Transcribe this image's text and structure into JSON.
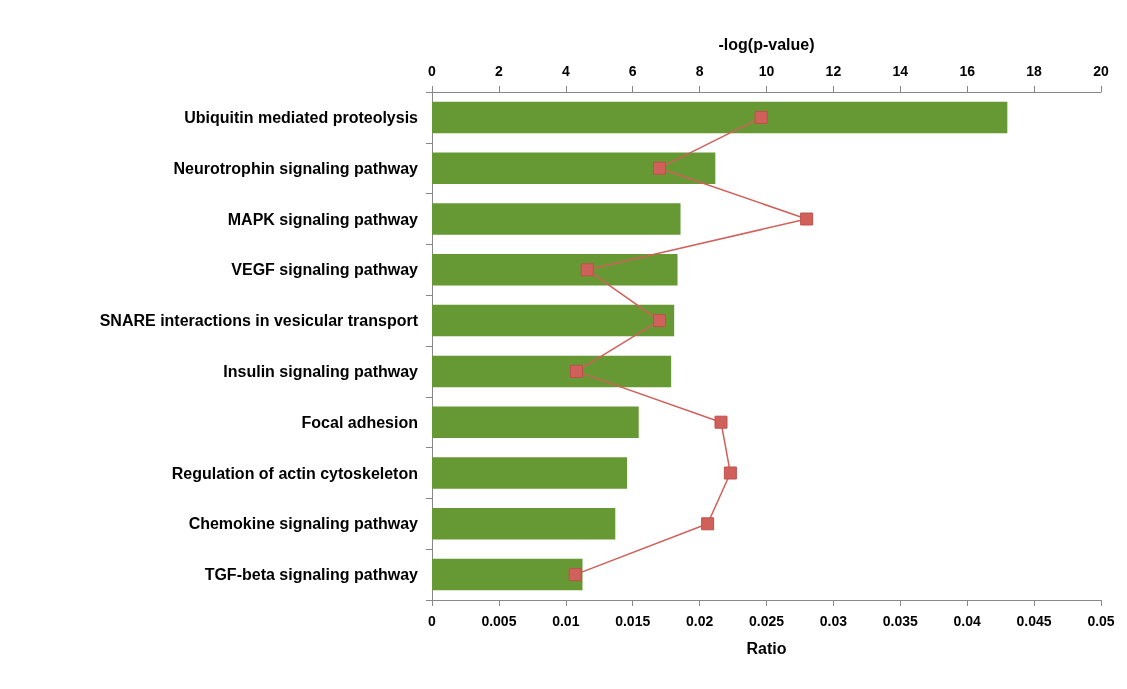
{
  "chart_data": {
    "type": "bar",
    "orientation": "horizontal",
    "categories": [
      "Ubiquitin mediated proteolysis",
      "Neurotrophin signaling pathway",
      "MAPK signaling pathway",
      "VEGF signaling pathway",
      "SNARE interactions in vesicular transport",
      "Insulin signaling pathway",
      "Focal adhesion",
      "Regulation of actin cytoskeleton",
      "Chemokine signaling pathway",
      "TGF-beta signaling pathway"
    ],
    "series": [
      {
        "axis": "x2",
        "color": "#669933",
        "values": [
          17.2,
          8.47,
          7.43,
          7.34,
          7.24,
          7.15,
          6.18,
          5.83,
          5.48,
          4.5
        ]
      },
      {
        "type": "line",
        "color": "#d0605a",
        "marker": "square",
        "values": [
          0.0246,
          0.017,
          0.028,
          0.0116,
          0.017,
          0.0108,
          0.0216,
          0.0223,
          0.0206,
          0.0107
        ]
      }
    ],
    "xlabel": "Ratio",
    "xlim": [
      0,
      0.05
    ],
    "xticks": [
      0,
      0.005,
      0.01,
      0.015,
      0.02,
      0.025,
      0.03,
      0.035,
      0.04,
      0.045,
      0.05
    ],
    "x2label": "-log(p-value)",
    "x2lim": [
      0,
      20
    ],
    "x2ticks": [
      0,
      2,
      4,
      6,
      8,
      10,
      12,
      14,
      16,
      18,
      20
    ],
    "grid": false
  }
}
